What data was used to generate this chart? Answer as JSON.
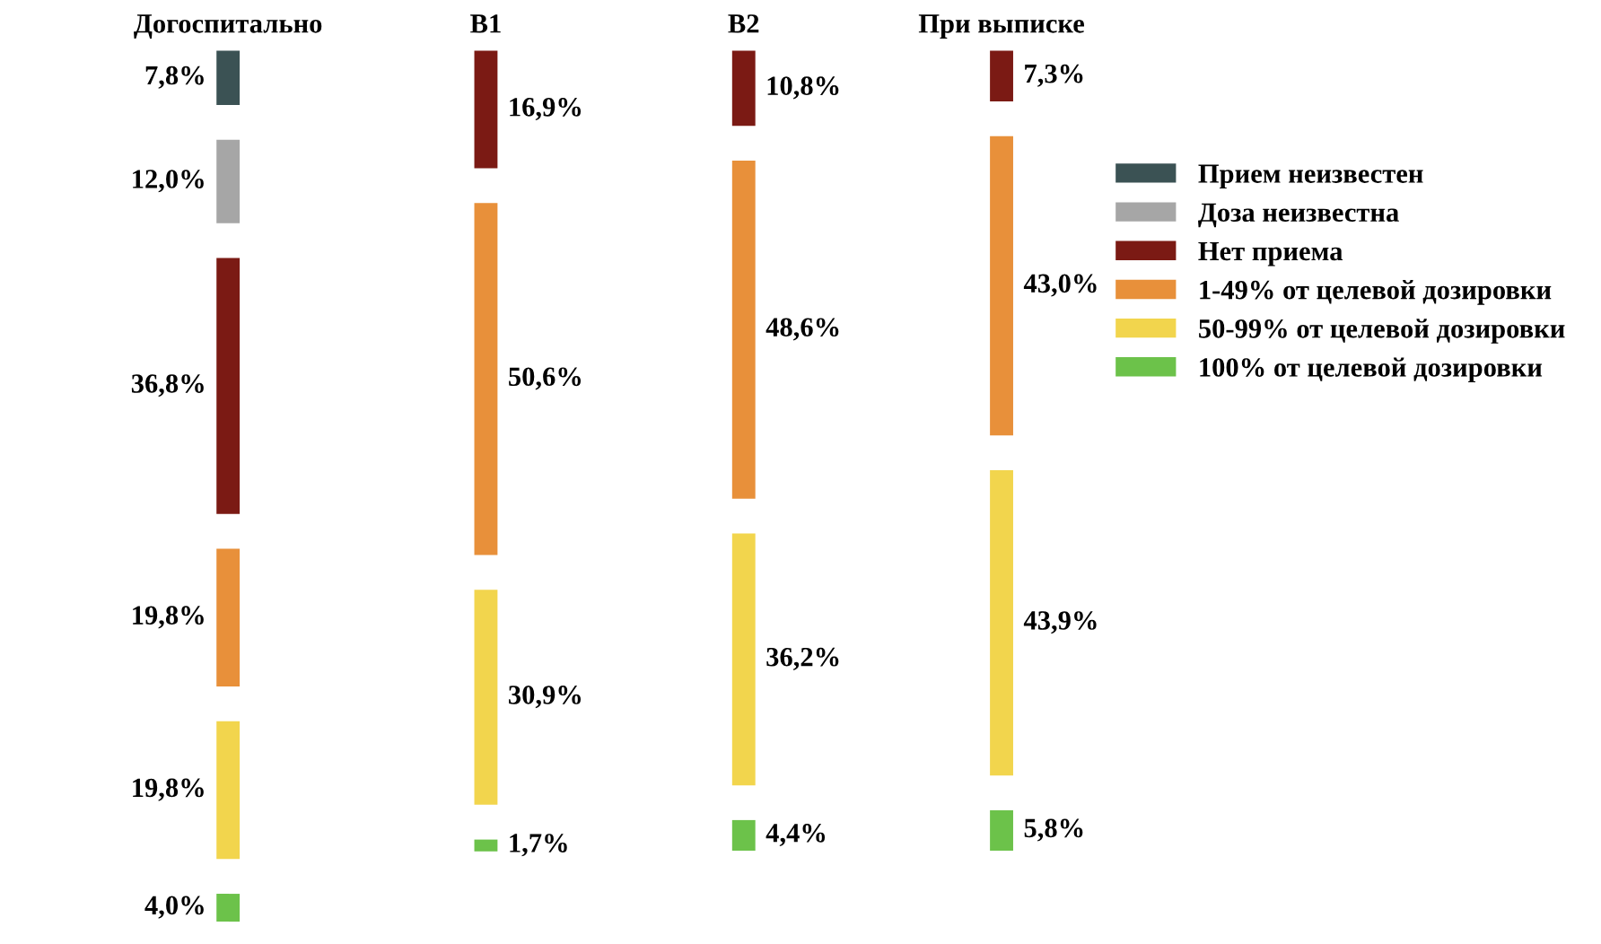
{
  "chart_data": {
    "type": "other",
    "legend": "right",
    "categories": [
      "Догоспитально",
      "В1",
      "В2",
      "При выписке"
    ],
    "series": [
      {
        "name": "Прием неизвестен",
        "color": "#3b5254",
        "values": [
          7.8,
          null,
          null,
          null
        ],
        "value_labels": [
          "7,8%",
          null,
          null,
          null
        ]
      },
      {
        "name": "Доза неизвестна",
        "color": "#a6a6a6",
        "values": [
          12.0,
          null,
          null,
          null
        ],
        "value_labels": [
          "12,0%",
          null,
          null,
          null
        ]
      },
      {
        "name": "Нет приема",
        "color": "#7b1a14",
        "values": [
          36.8,
          16.9,
          10.8,
          7.3
        ],
        "value_labels": [
          "36,8%",
          "16,9%",
          "10,8%",
          "7,3%"
        ]
      },
      {
        "name": "1-49% от целевой дозировки",
        "color": "#e8903a",
        "values": [
          19.8,
          50.6,
          48.6,
          43.0
        ],
        "value_labels": [
          "19,8%",
          "50,6%",
          "48,6%",
          "43,0%"
        ]
      },
      {
        "name": "50-99% от целевой дозировки",
        "color": "#f2d54d",
        "values": [
          19.8,
          30.9,
          36.2,
          43.9
        ],
        "value_labels": [
          "19,8%",
          "30,9%",
          "36,2%",
          "43,9%"
        ]
      },
      {
        "name": "100% от целевой дозировки",
        "color": "#6cc24a",
        "values": [
          4.0,
          1.7,
          4.4,
          5.8
        ],
        "value_labels": [
          "4,0%",
          "1,7%",
          "4,4%",
          "5,8%"
        ]
      }
    ]
  }
}
